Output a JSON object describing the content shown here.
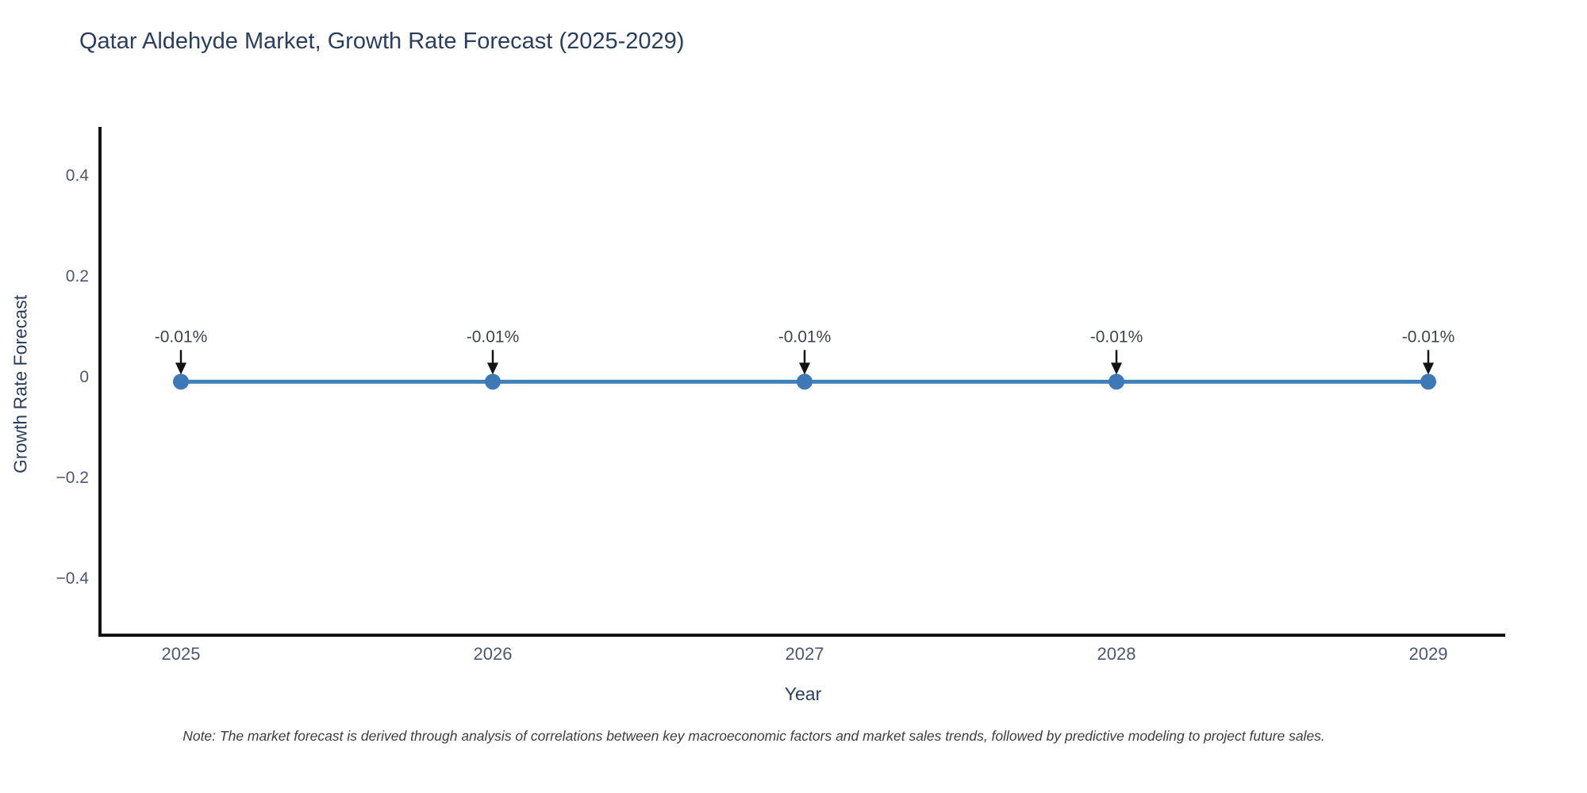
{
  "page": {
    "background": "#ffffff"
  },
  "chart_data": {
    "type": "line",
    "title": "Qatar Aldehyde Market, Growth Rate Forecast (2025-2029)",
    "xlabel": "Year",
    "ylabel": "Growth Rate Forecast",
    "x": [
      2025,
      2026,
      2027,
      2028,
      2029
    ],
    "xtick_labels": [
      "2025",
      "2026",
      "2027",
      "2028",
      "2029"
    ],
    "series": [
      {
        "name": "Growth Rate Forecast",
        "values": [
          -0.01,
          -0.01,
          -0.01,
          -0.01,
          -0.01
        ]
      }
    ],
    "point_labels": [
      "-0.01%",
      "-0.01%",
      "-0.01%",
      "-0.01%",
      "-0.01%"
    ],
    "yticks": [
      0.4,
      0.2,
      0,
      -0.2,
      -0.4
    ],
    "ytick_labels": [
      "0.4",
      "0.2",
      "0",
      "−0.2",
      "−0.4"
    ],
    "ylim": [
      -0.52,
      0.55
    ],
    "grid": false,
    "legend_position": "none",
    "line_color": "#4181bb",
    "marker_color": "#3c79b6",
    "axis_color": "#131313",
    "tick_label_color": "#4c5773",
    "annotation_color": "#3f4450",
    "arrow_color": "#131313"
  },
  "note": "Note: The market forecast is derived through analysis of correlations between key macroeconomic factors and market sales trends, followed by predictive modeling to project future sales."
}
